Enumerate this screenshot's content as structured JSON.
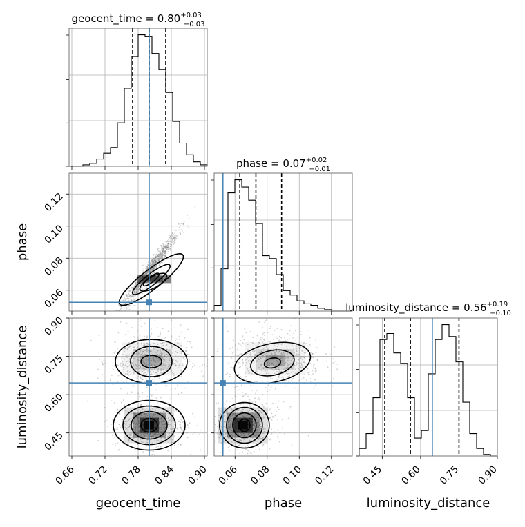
{
  "chart_data": {
    "type": "corner",
    "parameters": [
      "geocent_time",
      "phase",
      "luminosity_distance"
    ],
    "truths": {
      "geocent_time": 0.8,
      "phase": 0.0525,
      "luminosity_distance": 0.646
    },
    "titles": [
      {
        "name": "geocent_time = 0.80",
        "sup": "+0.03",
        "sub": "−0.03"
      },
      {
        "name": "phase = 0.07",
        "sup": "+0.02",
        "sub": "−0.01"
      },
      {
        "name": "luminosity_distance = 0.56",
        "sup": "+0.19",
        "sub": "−0.10"
      }
    ],
    "quantiles": {
      "geocent_time": [
        0.77,
        0.8,
        0.83
      ],
      "phase": [
        0.063,
        0.073,
        0.089
      ],
      "luminosity_distance": [
        0.46,
        0.56,
        0.75
      ]
    },
    "ranges": {
      "geocent_time": [
        0.655,
        0.905
      ],
      "phase": [
        0.047,
        0.133
      ],
      "luminosity_distance": [
        0.36,
        0.9
      ]
    },
    "ticks": {
      "geocent_time": {
        "values": [
          0.66,
          0.72,
          0.78,
          0.84,
          0.9
        ],
        "labels": [
          "0.66",
          "0.72",
          "0.78",
          "0.84",
          "0.90"
        ]
      },
      "phase": {
        "values": [
          0.06,
          0.08,
          0.1,
          0.12
        ],
        "labels": [
          "0.06",
          "0.08",
          "0.10",
          "0.12"
        ]
      },
      "luminosity_distance": {
        "values": [
          0.45,
          0.6,
          0.75,
          0.9
        ],
        "labels": [
          "0.45",
          "0.60",
          "0.75",
          "0.90"
        ]
      }
    },
    "histograms": {
      "geocent_time": [
        0,
        0,
        1,
        2,
        5,
        9,
        13,
        30,
        54,
        76,
        91,
        90,
        78,
        67,
        51,
        31,
        16,
        8,
        3,
        1
      ],
      "phase": [
        4,
        29,
        81,
        90,
        85,
        76,
        60,
        38,
        36,
        25,
        14,
        11,
        7,
        5,
        4,
        2,
        1,
        0,
        0,
        0
      ],
      "luminosity_distance": [
        5,
        15,
        39,
        78,
        82,
        69,
        62,
        39,
        12,
        17,
        55,
        78,
        88,
        80,
        63,
        36,
        15,
        5,
        1,
        0
      ]
    },
    "histogram_bins": 20,
    "grid": true
  }
}
